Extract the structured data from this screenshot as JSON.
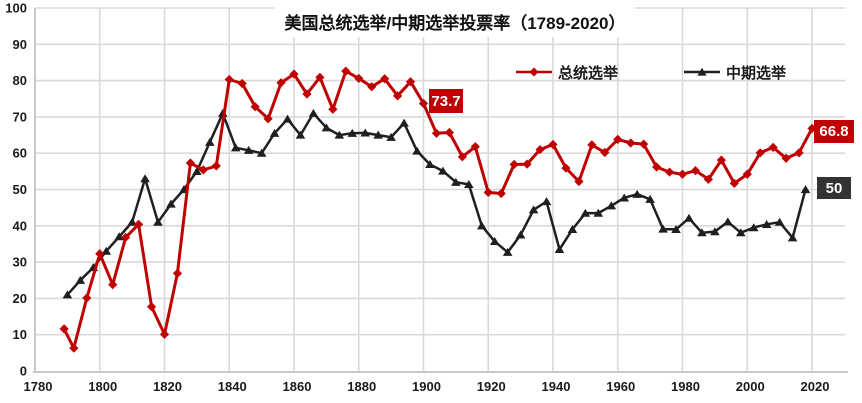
{
  "colors": {
    "background": "#FFFFFF",
    "gridline": "#D9D9D9",
    "axis": "#C9C9C9",
    "tick_label": "#1A1A1A",
    "presidential": "#C00000",
    "midterm": "#1F1F1F"
  },
  "chart_data": {
    "type": "line",
    "title": "美国总统选举/中期选举投票率（1789-2020）",
    "xlabel": "",
    "ylabel": "",
    "grid": true,
    "legend_position": "top-inside",
    "x_axis": {
      "min": 1780,
      "max": 2032,
      "ticks": [
        1780,
        1800,
        1820,
        1840,
        1860,
        1880,
        1900,
        1920,
        1940,
        1960,
        1980,
        2000,
        2020
      ]
    },
    "y_axis": {
      "min": 0,
      "max": 100,
      "ticks": [
        0,
        10,
        20,
        30,
        40,
        50,
        60,
        70,
        80,
        90,
        100
      ]
    },
    "series": [
      {
        "name": "总统选举",
        "color": "#C00000",
        "marker": "diamond",
        "x": [
          1789,
          1792,
          1796,
          1800,
          1804,
          1808,
          1812,
          1816,
          1820,
          1824,
          1828,
          1832,
          1836,
          1840,
          1844,
          1848,
          1852,
          1856,
          1860,
          1864,
          1868,
          1872,
          1876,
          1880,
          1884,
          1888,
          1892,
          1896,
          1900,
          1904,
          1908,
          1912,
          1916,
          1920,
          1924,
          1928,
          1932,
          1936,
          1940,
          1944,
          1948,
          1952,
          1956,
          1960,
          1964,
          1968,
          1972,
          1976,
          1980,
          1984,
          1988,
          1992,
          1996,
          2000,
          2004,
          2008,
          2012,
          2016,
          2020
        ],
        "y": [
          11.6,
          6.3,
          20.1,
          32.3,
          23.8,
          36.8,
          40.4,
          17.7,
          10.1,
          26.9,
          57.3,
          55.4,
          56.5,
          80.3,
          79.2,
          72.8,
          69.5,
          79.4,
          81.8,
          76.3,
          80.9,
          72.1,
          82.6,
          80.6,
          78.3,
          80.5,
          75.8,
          79.7,
          73.7,
          65.5,
          65.7,
          59.0,
          61.8,
          49.2,
          48.9,
          56.9,
          57.0,
          61.0,
          62.4,
          55.9,
          52.2,
          62.3,
          60.2,
          63.8,
          62.8,
          62.5,
          56.2,
          54.8,
          54.2,
          55.2,
          52.8,
          58.1,
          51.7,
          54.2,
          60.1,
          61.6,
          58.6,
          60.1,
          66.8
        ]
      },
      {
        "name": "中期选举",
        "color": "#1F1F1F",
        "marker": "triangle",
        "x": [
          1790,
          1794,
          1798,
          1802,
          1806,
          1810,
          1814,
          1818,
          1822,
          1826,
          1830,
          1834,
          1838,
          1842,
          1846,
          1850,
          1854,
          1858,
          1862,
          1866,
          1870,
          1874,
          1878,
          1882,
          1886,
          1890,
          1894,
          1898,
          1902,
          1906,
          1910,
          1914,
          1918,
          1922,
          1926,
          1930,
          1934,
          1938,
          1942,
          1946,
          1950,
          1954,
          1958,
          1962,
          1966,
          1970,
          1974,
          1978,
          1982,
          1986,
          1990,
          1994,
          1998,
          2002,
          2006,
          2010,
          2014,
          2018
        ],
        "y": [
          21.0,
          25.0,
          28.5,
          33.0,
          37.0,
          41.0,
          53.0,
          41.0,
          46.0,
          50.0,
          55.0,
          63.0,
          71.0,
          61.5,
          60.8,
          60.0,
          65.5,
          69.4,
          65.0,
          71.0,
          67.0,
          65.0,
          65.5,
          65.6,
          65.0,
          64.4,
          68.3,
          60.6,
          56.9,
          55.1,
          52.0,
          51.4,
          40.0,
          35.7,
          32.7,
          37.5,
          44.4,
          46.7,
          33.5,
          39.0,
          43.5,
          43.5,
          45.5,
          47.7,
          48.7,
          47.3,
          39.1,
          39.0,
          42.1,
          38.1,
          38.4,
          41.1,
          38.1,
          39.5,
          40.4,
          41.0,
          36.7,
          50.0
        ]
      }
    ],
    "annotations": [
      {
        "series": "总统选举",
        "x": 1900,
        "y": 73.7,
        "text": "73.7",
        "bg": "#C00000"
      },
      {
        "series": "总统选举",
        "x": 2020,
        "y": 66.8,
        "text": "66.8",
        "bg": "#C00000"
      },
      {
        "series": "中期选举",
        "x": 2018,
        "y": 50.0,
        "text": "50",
        "bg": "#333333"
      }
    ]
  }
}
